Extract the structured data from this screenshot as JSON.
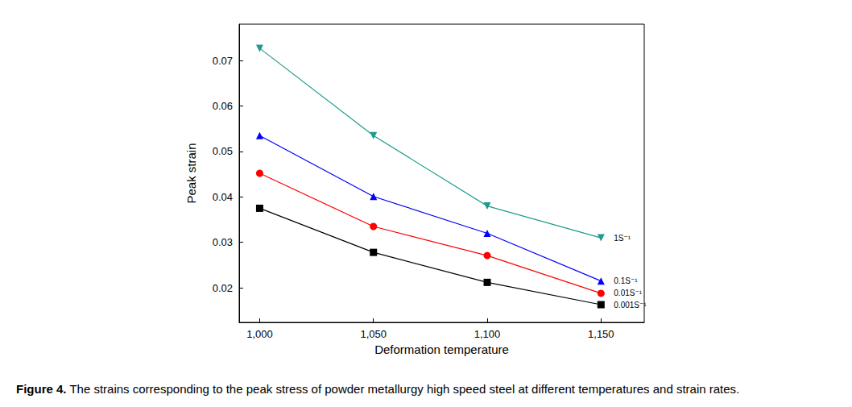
{
  "chart_data": {
    "type": "line",
    "xlabel": "Deformation temperature",
    "ylabel": "Peak strain",
    "caption_label": "Figure 4.",
    "caption": "The strains corresponding to the peak stress of powder metallurgy high speed steel at different temperatures and strain rates.",
    "x": [
      1000,
      1050,
      1100,
      1150
    ],
    "series": [
      {
        "name": "1S⁻¹",
        "color": "#1f9a8c",
        "marker": "triangle_down",
        "values": [
          0.0727,
          0.0535,
          0.038,
          0.031
        ]
      },
      {
        "name": "0.1S⁻¹",
        "color": "#0000ff",
        "marker": "triangle",
        "values": [
          0.0535,
          0.0401,
          0.032,
          0.0215
        ]
      },
      {
        "name": "0.01S⁻¹",
        "color": "#ff0000",
        "marker": "circle",
        "values": [
          0.0452,
          0.0335,
          0.0271,
          0.0188
        ]
      },
      {
        "name": "0.001S⁻¹",
        "color": "#000000",
        "marker": "square",
        "values": [
          0.0375,
          0.0278,
          0.0212,
          0.0163
        ]
      }
    ],
    "xlim": [
      991,
      1169
    ],
    "xticks": [
      1000,
      1050,
      1100,
      1150
    ],
    "ylim": [
      0.0124,
      0.078
    ],
    "yticks": [
      0.02,
      0.03,
      0.04,
      0.05,
      0.06,
      0.07
    ],
    "grid": false,
    "legend": false
  }
}
